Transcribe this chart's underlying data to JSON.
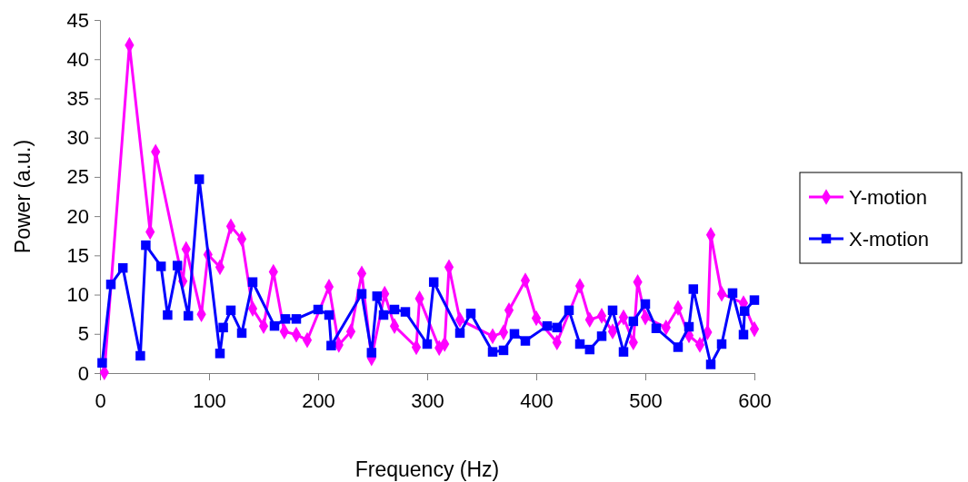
{
  "chart_data": {
    "type": "line",
    "xlabel": "Frequency (Hz)",
    "ylabel": "Power (a.u.)",
    "xlim": [
      0,
      600
    ],
    "xticks": [
      0,
      100,
      200,
      300,
      400,
      500,
      600
    ],
    "ylim": [
      0,
      45
    ],
    "yticks": [
      0,
      5,
      10,
      15,
      20,
      25,
      30,
      35,
      40,
      45
    ],
    "legend": "right",
    "grid": false,
    "line_style": "solid",
    "series": [
      {
        "name": "Y-motion",
        "color": "#ff00ff",
        "marker": "diamond",
        "x": [
          4,
          27,
          46,
          51,
          76,
          79,
          93,
          99,
          110,
          120,
          130,
          140,
          150,
          159,
          169,
          180,
          190,
          200,
          210,
          219,
          230,
          240,
          249,
          261,
          270,
          290,
          293,
          311,
          316,
          320,
          330,
          340,
          360,
          370,
          375,
          380,
          390,
          400,
          419,
          440,
          449,
          460,
          470,
          480,
          489,
          493,
          500,
          519,
          530,
          540,
          550,
          557,
          560,
          570,
          580,
          590,
          600
        ],
        "values": [
          0.1,
          41.8,
          18,
          28.2,
          11.7,
          15.8,
          7.5,
          15.1,
          13.5,
          18.7,
          17.1,
          8.2,
          6,
          12.9,
          5.3,
          4.9,
          4.2,
          null,
          11,
          3.6,
          5.3,
          12.7,
          1.9,
          10.1,
          6,
          3.3,
          9.5,
          3.2,
          3.7,
          13.5,
          6.8,
          null,
          4.7,
          5.2,
          8,
          null,
          11.8,
          7,
          3.9,
          11.1,
          6.8,
          7.3,
          5.3,
          7.1,
          3.9,
          11.6,
          7.1,
          5.8,
          8.3,
          4.8,
          3.6,
          5.2,
          17.6,
          10.1,
          null,
          8.9,
          5.6
        ]
      },
      {
        "name": "X-motion",
        "color": "#0000ff",
        "marker": "square",
        "x": [
          2,
          10,
          21,
          37,
          42,
          56,
          62,
          71,
          81,
          91,
          110,
          113,
          120,
          130,
          140,
          160,
          170,
          180,
          200,
          210,
          212,
          240,
          249,
          254,
          260,
          270,
          280,
          300,
          306,
          330,
          340,
          360,
          370,
          380,
          390,
          410,
          419,
          430,
          440,
          449,
          460,
          470,
          480,
          489,
          500,
          510,
          530,
          540,
          544,
          560,
          570,
          580,
          590,
          591,
          600
        ],
        "values": [
          1.3,
          11.3,
          13.4,
          2.2,
          16.3,
          13.6,
          7.4,
          13.7,
          7.3,
          24.7,
          2.5,
          5.8,
          8,
          5.1,
          11.6,
          6,
          6.9,
          6.9,
          8.1,
          7.4,
          3.5,
          10.1,
          2.6,
          9.8,
          7.4,
          8.1,
          7.8,
          3.7,
          11.6,
          5.1,
          7.6,
          2.7,
          2.9,
          5,
          4.1,
          6,
          5.8,
          8,
          3.7,
          3,
          4.7,
          8,
          2.7,
          6.6,
          8.8,
          5.7,
          3.3,
          5.9,
          10.7,
          1.1,
          3.7,
          10.2,
          4.9,
          7.9,
          9.3
        ]
      }
    ]
  }
}
